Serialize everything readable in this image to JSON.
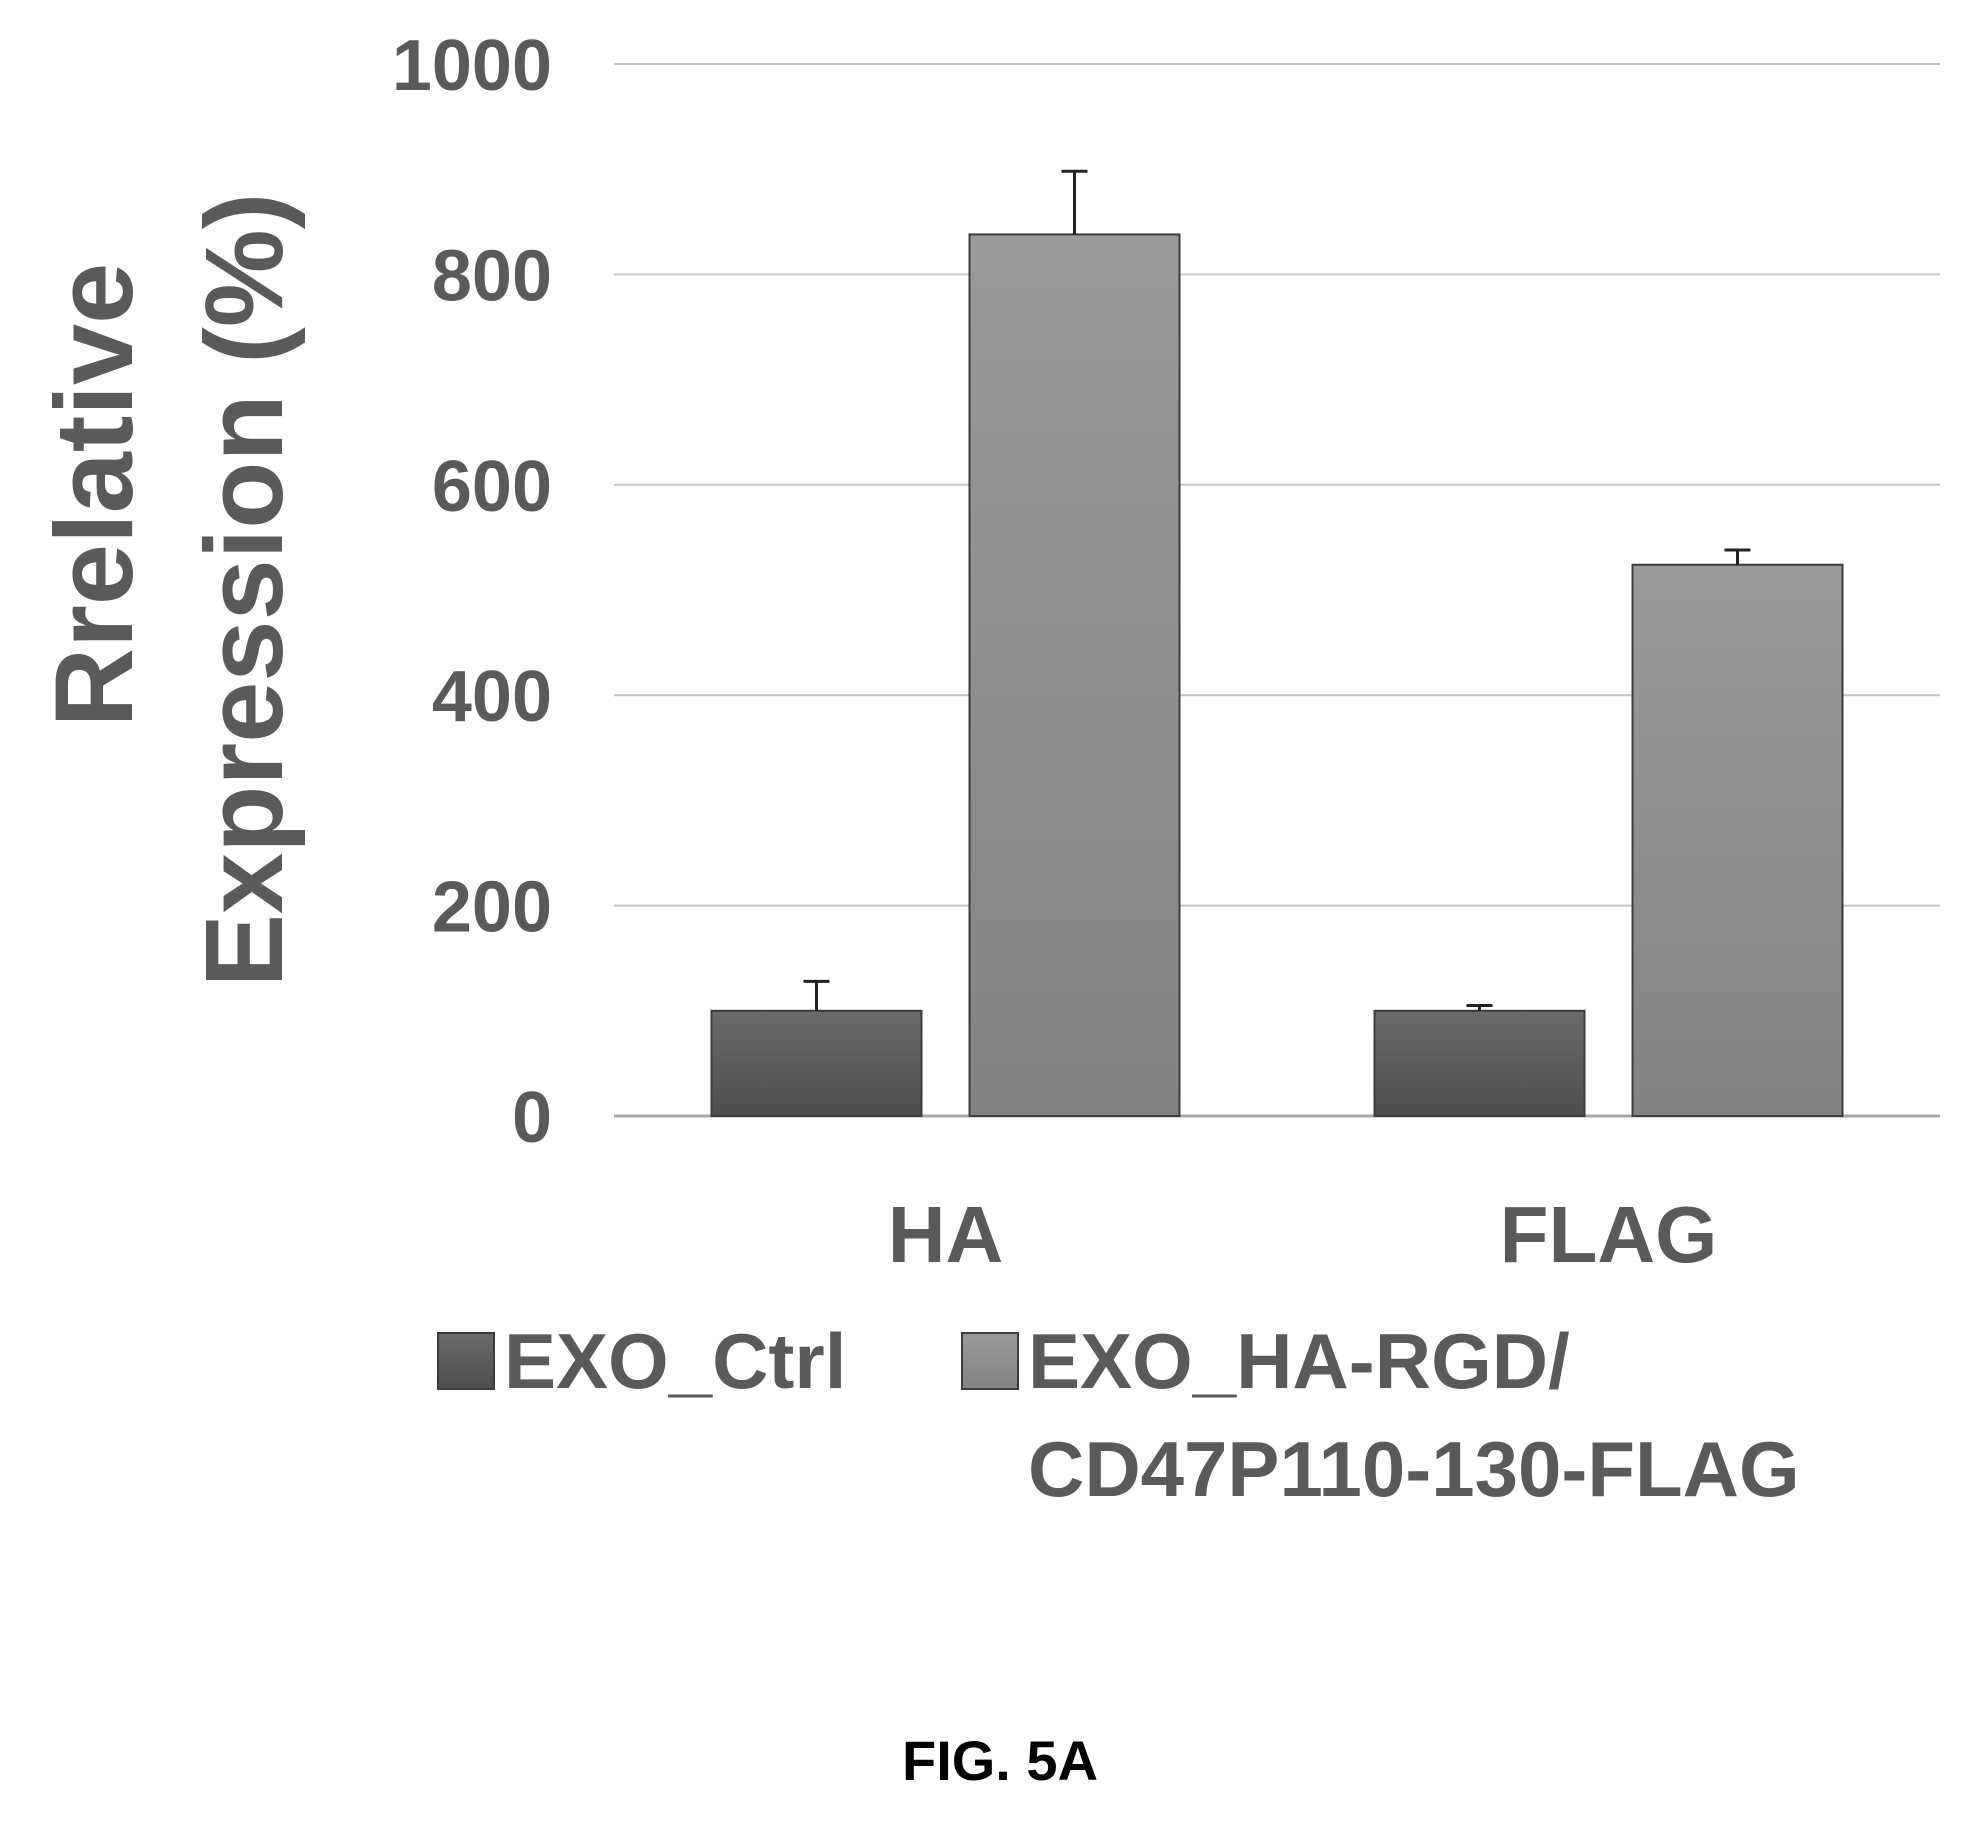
{
  "chart_data": {
    "type": "bar",
    "categories": [
      "HA",
      "FLAG"
    ],
    "series": [
      {
        "name": "EXO_Ctrl",
        "values": [
          100,
          100
        ],
        "error": [
          28,
          5
        ],
        "color": "#5b5b5b"
      },
      {
        "name": "EXO_HA-RGD/\nCD47P110-130-FLAG",
        "values": [
          838,
          524
        ],
        "error": [
          60,
          14
        ],
        "color": "#8c8c8c"
      }
    ],
    "ylabel_lines": [
      "Rrelative",
      "Expression (%)"
    ],
    "ylim": [
      0,
      1000
    ],
    "yticks": [
      0,
      200,
      400,
      600,
      800,
      1000
    ],
    "grid": true,
    "legend_position": "bottom"
  },
  "caption": "FIG. 5A"
}
